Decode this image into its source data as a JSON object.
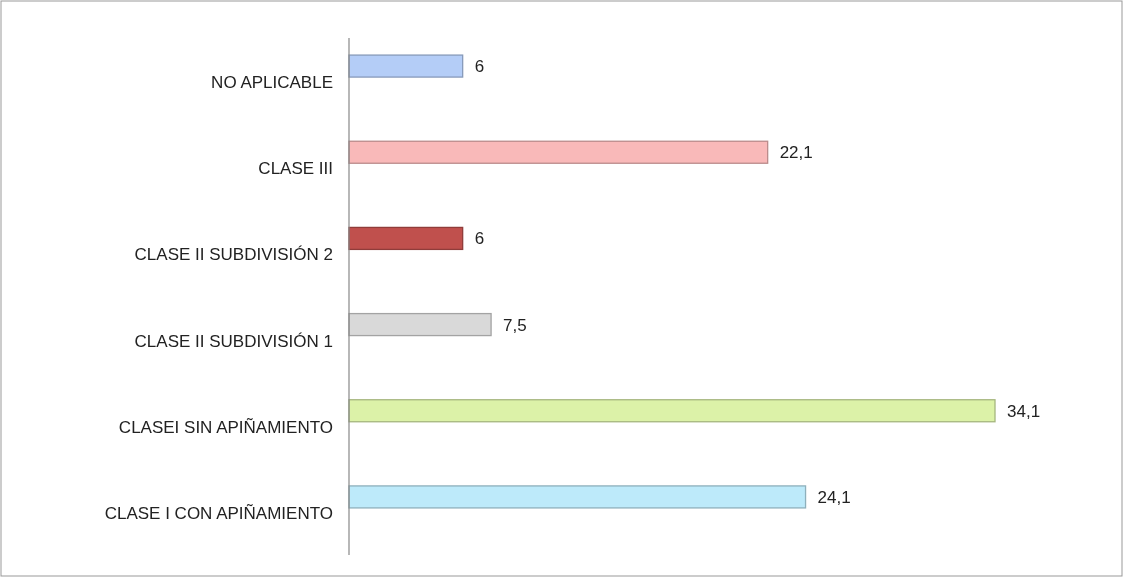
{
  "chart_data": {
    "type": "bar",
    "orientation": "horizontal",
    "categories": [
      "NO APLICABLE",
      "CLASE III",
      "CLASE II SUBDIVISIÓN 2",
      "CLASE II SUBDIVISIÓN 1",
      "CLASEI SIN APIÑAMIENTO",
      "CLASE I CON APIÑAMIENTO"
    ],
    "values": [
      6,
      22.1,
      6,
      7.5,
      34.1,
      24.1
    ],
    "value_labels": [
      "6",
      "22,1",
      "6",
      "7,5",
      "34,1",
      "24,1"
    ],
    "colors": [
      "#b4cdf7",
      "#f9b9b9",
      "#c0504d",
      "#d9d9d9",
      "#dcf2a8",
      "#bdeafa"
    ]
  }
}
